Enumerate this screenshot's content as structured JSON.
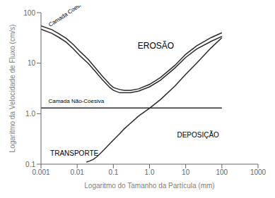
{
  "chart_data": {
    "type": "line",
    "xlabel": "Logaritmo do Tamanho da Partícula (mm)",
    "ylabel": "Logaritmo da Velocidade de Fluxo (cm/s)",
    "log": true,
    "grid": false,
    "xlim": [
      0.001,
      1000
    ],
    "ylim": [
      0.1,
      100
    ],
    "xticks": [
      0.001,
      0.01,
      0.1,
      {
        "value": 1.0,
        "label": "1.0"
      },
      10,
      100,
      1000
    ],
    "yticks": [
      0.1,
      {
        "value": 1.0,
        "label": "1.0"
      },
      10,
      100
    ],
    "series": [
      {
        "color": "#2a2a2a",
        "x": [
          0.001,
          0.002,
          0.003,
          0.005,
          0.008,
          0.012,
          0.02,
          0.03,
          0.05,
          0.08,
          0.1,
          0.15,
          0.2,
          0.3,
          0.5,
          1.0,
          2.0,
          5.0,
          10.0,
          20.0,
          50.0,
          100.0
        ],
        "values": [
          55,
          46,
          39,
          31,
          23,
          17,
          12,
          8.5,
          5.5,
          3.8,
          3.3,
          3.0,
          2.9,
          2.9,
          3.1,
          3.8,
          5.2,
          9.0,
          15,
          22,
          32,
          40
        ]
      },
      {
        "color": "#2a2a2a",
        "x": [
          0.001,
          0.002,
          0.003,
          0.005,
          0.008,
          0.012,
          0.02,
          0.03,
          0.05,
          0.08,
          0.1,
          0.15,
          0.2,
          0.3,
          0.5,
          1.0,
          2.0,
          5.0,
          10.0,
          20.0,
          50.0,
          100.0
        ],
        "values": [
          47,
          39,
          33,
          26,
          19,
          14,
          10,
          7.2,
          4.7,
          3.3,
          2.9,
          2.6,
          2.6,
          2.6,
          2.8,
          3.4,
          4.6,
          8.0,
          13,
          19,
          27,
          34
        ]
      },
      {
        "color": "#2a2a2a",
        "x": [
          0.001,
          0.01,
          0.1,
          0.2,
          0.5,
          1.0,
          2.0,
          5.0,
          10.0,
          20.0,
          50.0,
          100.0
        ],
        "values": [
          1.3,
          1.3,
          1.3,
          1.3,
          1.3,
          1.3,
          1.3,
          1.3,
          1.3,
          1.3,
          1.3,
          1.3
        ]
      },
      {
        "color": "#2a2a2a",
        "x": [
          0.018,
          0.022,
          0.028,
          0.035,
          0.05,
          0.07,
          0.1,
          0.15,
          0.2,
          0.3,
          0.5,
          1.0,
          2.0,
          5.0,
          10.0,
          20.0,
          50.0,
          100.0
        ],
        "values": [
          0.11,
          0.115,
          0.125,
          0.14,
          0.18,
          0.23,
          0.3,
          0.4,
          0.5,
          0.65,
          0.9,
          1.28,
          1.9,
          3.5,
          6.0,
          10.0,
          20.0,
          32.0
        ]
      }
    ],
    "annotations": [
      {
        "text": "EROSÃO",
        "x": 1.5,
        "y": 22
      },
      {
        "text": "TRANSPORTE",
        "x": 0.0018,
        "y": 0.165
      },
      {
        "text": "DEPOSIÇÃO",
        "x": 22,
        "y": 0.38
      },
      {
        "text": "Camada Coesiva",
        "x": 0.0018,
        "y": 52
      },
      {
        "text": "Camada Não-Coesiva",
        "x": 0.0016,
        "y": 1.65
      }
    ]
  }
}
